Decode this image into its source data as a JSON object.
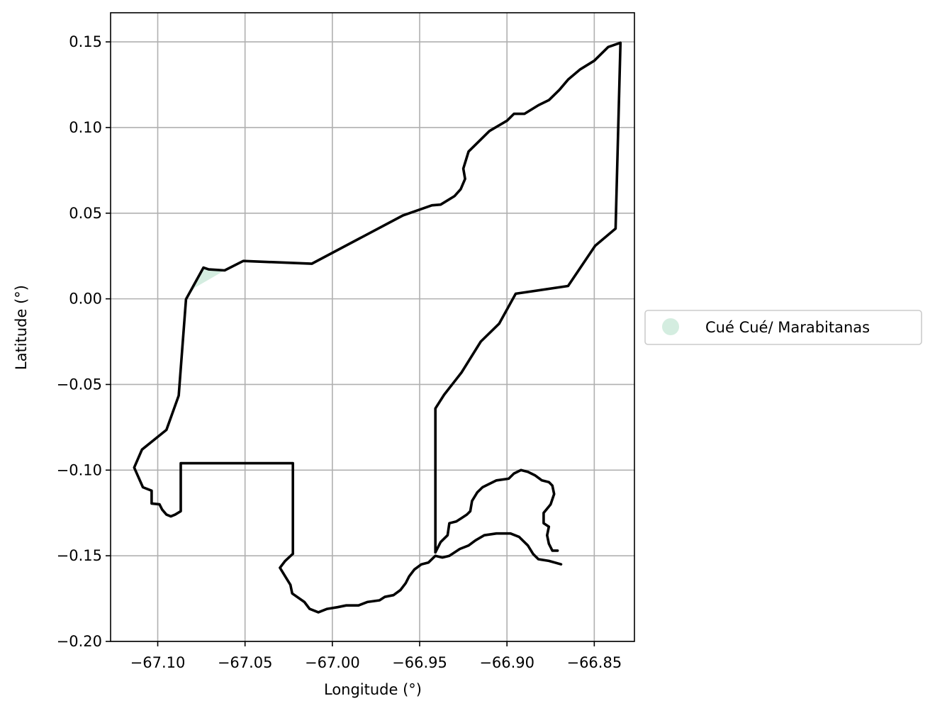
{
  "chart_data": {
    "type": "map",
    "xlabel": "Longitude (°)",
    "ylabel": "Latitude (°)",
    "xlim": [
      -67.127,
      -66.827
    ],
    "ylim": [
      -0.2,
      0.167
    ],
    "grid": true,
    "x_ticks": [
      {
        "value": -67.1,
        "label": "−67.10"
      },
      {
        "value": -67.05,
        "label": "−67.05"
      },
      {
        "value": -67.0,
        "label": "−67.00"
      },
      {
        "value": -66.95,
        "label": "−66.95"
      },
      {
        "value": -66.9,
        "label": "−66.90"
      },
      {
        "value": -66.85,
        "label": "−66.85"
      }
    ],
    "y_ticks": [
      {
        "value": 0.15,
        "label": "0.15"
      },
      {
        "value": 0.1,
        "label": "0.10"
      },
      {
        "value": 0.05,
        "label": "0.05"
      },
      {
        "value": 0.0,
        "label": "0.00"
      },
      {
        "value": -0.05,
        "label": "−0.05"
      },
      {
        "value": -0.1,
        "label": "−0.10"
      },
      {
        "value": -0.15,
        "label": "−0.15"
      },
      {
        "value": -0.2,
        "label": "−0.20"
      }
    ],
    "legend": {
      "placement": "center-right-outside",
      "entries": [
        {
          "label": "Cué Cué/ Marabitanas",
          "color": "#d4ede0",
          "marker": "circle"
        }
      ]
    },
    "fill_color": "#d4ede0",
    "boundary_color": "#000000",
    "series": [
      {
        "label": "Cué Cué/ Marabitanas",
        "kind": "fill",
        "points": [
          [
            -67.0838,
            -0.0003
          ],
          [
            -67.0787,
            0.0066
          ],
          [
            -67.0671,
            0.0134
          ],
          [
            -67.0617,
            0.0166
          ],
          [
            -67.0663,
            0.0163
          ],
          [
            -67.0738,
            0.0182
          ],
          [
            -67.0838,
            -0.0003
          ]
        ]
      },
      {
        "label": "boundary",
        "kind": "line",
        "points": [
          [
            -67.0226,
            -0.1488
          ],
          [
            -67.0226,
            -0.096
          ],
          [
            -67.0868,
            -0.096
          ],
          [
            -67.0868,
            -0.124
          ],
          [
            -67.09,
            -0.126
          ],
          [
            -67.0925,
            -0.127
          ],
          [
            -67.095,
            -0.126
          ],
          [
            -67.0975,
            -0.123
          ],
          [
            -67.099,
            -0.12
          ],
          [
            -67.1035,
            -0.1195
          ],
          [
            -67.1035,
            -0.112
          ],
          [
            -67.1085,
            -0.11
          ],
          [
            -67.1135,
            -0.0985
          ],
          [
            -67.109,
            -0.088
          ],
          [
            -67.095,
            -0.0765
          ],
          [
            -67.088,
            -0.0565
          ],
          [
            -67.0838,
            -0.0003
          ],
          [
            -67.0738,
            0.0182
          ],
          [
            -67.0708,
            0.0172
          ],
          [
            -67.0617,
            0.0166
          ],
          [
            -67.051,
            0.0221
          ],
          [
            -67.0118,
            0.0205
          ],
          [
            -66.9595,
            0.0487
          ],
          [
            -66.943,
            0.0546
          ],
          [
            -66.938,
            0.055
          ],
          [
            -66.93,
            0.06
          ],
          [
            -66.9265,
            0.064
          ],
          [
            -66.924,
            0.07
          ],
          [
            -66.925,
            0.076
          ],
          [
            -66.922,
            0.086
          ],
          [
            -66.91,
            0.098
          ],
          [
            -66.9,
            0.104
          ],
          [
            -66.896,
            0.108
          ],
          [
            -66.89,
            0.108
          ],
          [
            -66.882,
            0.113
          ],
          [
            -66.876,
            0.116
          ],
          [
            -66.87,
            0.122
          ],
          [
            -66.865,
            0.128
          ],
          [
            -66.858,
            0.134
          ],
          [
            -66.85,
            0.139
          ],
          [
            -66.842,
            0.147
          ],
          [
            -66.835,
            0.1495
          ],
          [
            -66.8378,
            0.041
          ],
          [
            -66.8495,
            0.031
          ],
          [
            -66.865,
            0.0075
          ],
          [
            -66.895,
            0.003
          ],
          [
            -66.9045,
            -0.0145
          ],
          [
            -66.915,
            -0.025
          ],
          [
            -66.926,
            -0.043
          ],
          [
            -66.936,
            -0.056
          ],
          [
            -66.941,
            -0.064
          ],
          [
            -66.941,
            -0.148
          ]
        ]
      },
      {
        "label": "boundary",
        "kind": "line",
        "points": [
          [
            -67.0226,
            -0.1488
          ],
          [
            -67.027,
            -0.153
          ],
          [
            -67.03,
            -0.157
          ],
          [
            -67.027,
            -0.162
          ],
          [
            -67.024,
            -0.167
          ],
          [
            -67.023,
            -0.172
          ],
          [
            -67.016,
            -0.177
          ],
          [
            -67.013,
            -0.181
          ],
          [
            -67.008,
            -0.183
          ],
          [
            -67.003,
            -0.181
          ],
          [
            -66.997,
            -0.18
          ],
          [
            -66.992,
            -0.179
          ],
          [
            -66.985,
            -0.179
          ],
          [
            -66.98,
            -0.177
          ],
          [
            -66.973,
            -0.176
          ],
          [
            -66.97,
            -0.174
          ],
          [
            -66.965,
            -0.173
          ],
          [
            -66.961,
            -0.17
          ],
          [
            -66.958,
            -0.166
          ],
          [
            -66.956,
            -0.162
          ],
          [
            -66.953,
            -0.158
          ],
          [
            -66.949,
            -0.155
          ],
          [
            -66.945,
            -0.154
          ],
          [
            -66.941,
            -0.15
          ],
          [
            -66.937,
            -0.151
          ],
          [
            -66.933,
            -0.15
          ],
          [
            -66.927,
            -0.146
          ],
          [
            -66.922,
            -0.144
          ],
          [
            -66.918,
            -0.141
          ],
          [
            -66.913,
            -0.138
          ],
          [
            -66.906,
            -0.137
          ],
          [
            -66.898,
            -0.137
          ],
          [
            -66.893,
            -0.139
          ],
          [
            -66.888,
            -0.144
          ],
          [
            -66.885,
            -0.149
          ],
          [
            -66.882,
            -0.152
          ],
          [
            -66.876,
            -0.153
          ],
          [
            -66.869,
            -0.155
          ]
        ]
      },
      {
        "label": "boundary",
        "kind": "line",
        "points": [
          [
            -66.941,
            -0.148
          ],
          [
            -66.938,
            -0.142
          ],
          [
            -66.934,
            -0.138
          ],
          [
            -66.933,
            -0.131
          ],
          [
            -66.929,
            -0.13
          ],
          [
            -66.926,
            -0.128
          ],
          [
            -66.923,
            -0.126
          ],
          [
            -66.921,
            -0.124
          ],
          [
            -66.92,
            -0.118
          ],
          [
            -66.917,
            -0.113
          ],
          [
            -66.914,
            -0.11
          ],
          [
            -66.91,
            -0.108
          ],
          [
            -66.906,
            -0.106
          ],
          [
            -66.899,
            -0.105
          ],
          [
            -66.896,
            -0.102
          ],
          [
            -66.892,
            -0.1
          ],
          [
            -66.888,
            -0.101
          ],
          [
            -66.884,
            -0.103
          ],
          [
            -66.88,
            -0.106
          ],
          [
            -66.876,
            -0.107
          ],
          [
            -66.874,
            -0.109
          ],
          [
            -66.873,
            -0.114
          ],
          [
            -66.875,
            -0.12
          ],
          [
            -66.879,
            -0.125
          ],
          [
            -66.879,
            -0.131
          ],
          [
            -66.876,
            -0.133
          ],
          [
            -66.877,
            -0.138
          ],
          [
            -66.876,
            -0.143
          ],
          [
            -66.874,
            -0.147
          ],
          [
            -66.871,
            -0.147
          ]
        ]
      }
    ]
  }
}
